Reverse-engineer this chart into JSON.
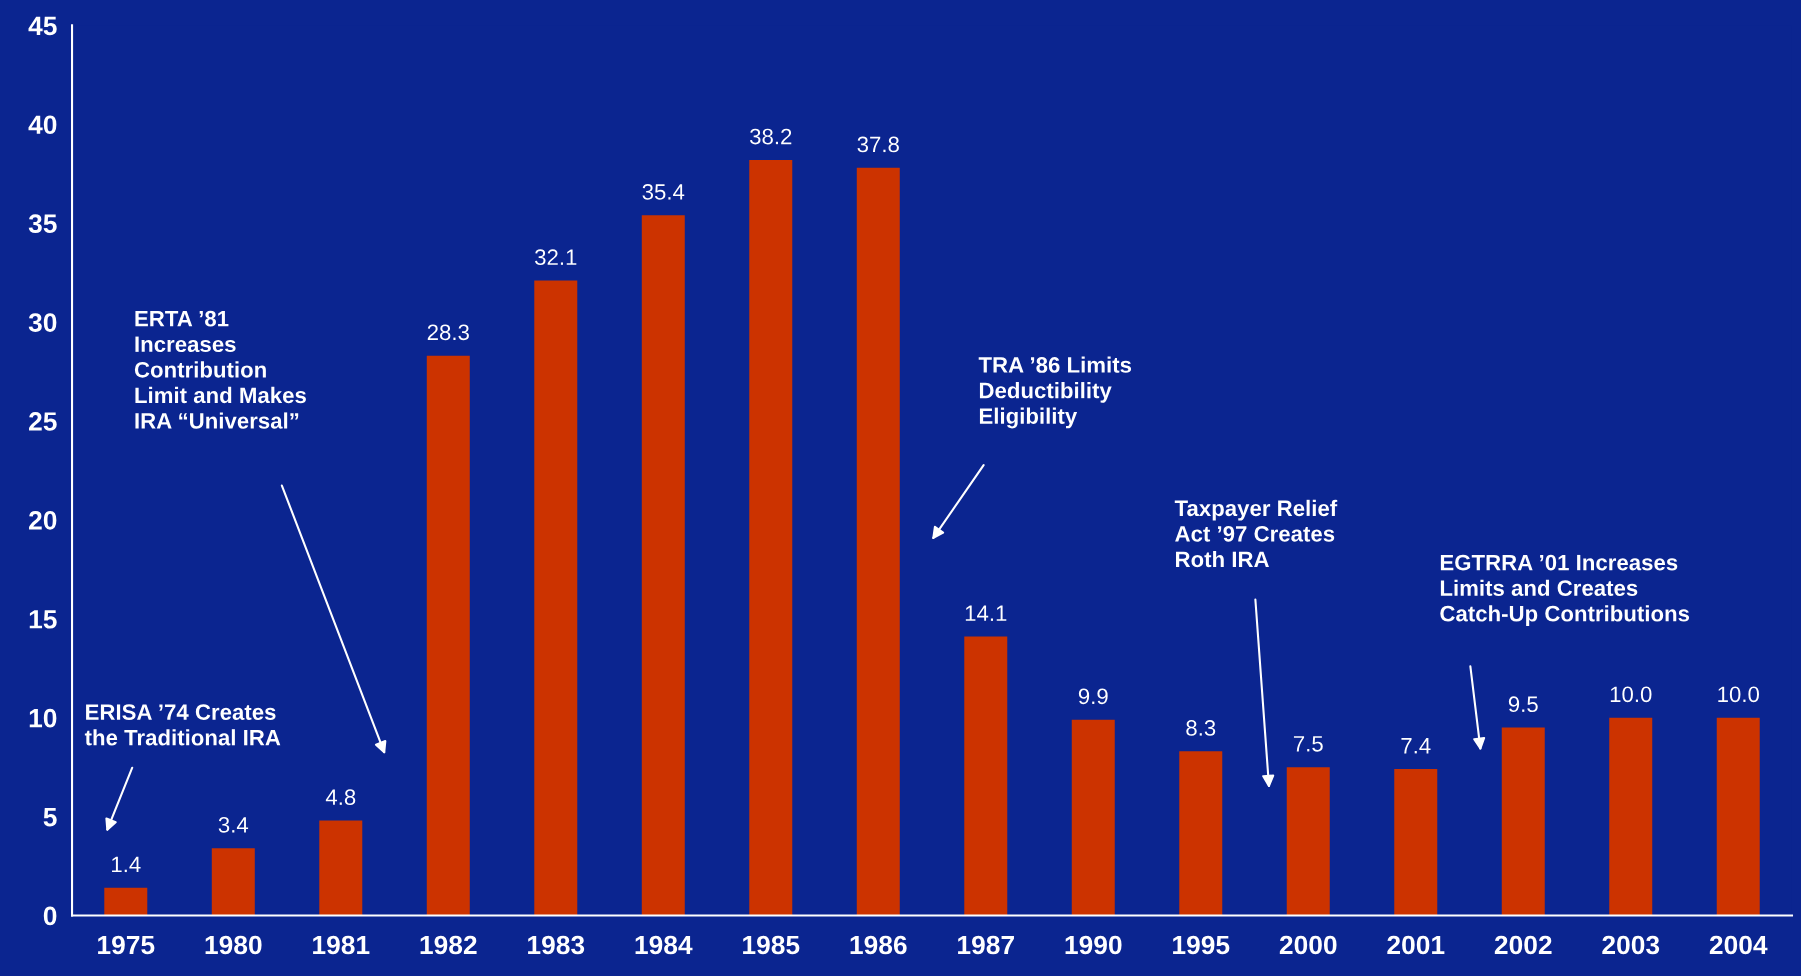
{
  "chart_data": {
    "type": "bar",
    "categories": [
      "1975",
      "1980",
      "1981",
      "1982",
      "1983",
      "1984",
      "1985",
      "1986",
      "1987",
      "1990",
      "1995",
      "2000",
      "2001",
      "2002",
      "2003",
      "2004"
    ],
    "values": [
      1.4,
      3.4,
      4.8,
      28.3,
      32.1,
      35.4,
      38.2,
      37.8,
      14.1,
      9.9,
      8.3,
      7.5,
      7.4,
      9.5,
      10.0,
      10.0
    ],
    "value_labels": [
      "1.4",
      "3.4",
      "4.8",
      "28.3",
      "32.1",
      "35.4",
      "38.2",
      "37.8",
      "14.1",
      "9.9",
      "8.3",
      "7.5",
      "7.4",
      "9.5",
      "10.0",
      "10.0"
    ],
    "color": "#cc3300",
    "ylim": [
      0,
      45
    ],
    "yticks": [
      0,
      5,
      10,
      15,
      20,
      25,
      30,
      35,
      40,
      45
    ],
    "grid": false,
    "legend": false,
    "annotations": [
      "ERISA ’74 Creates\nthe Traditional IRA",
      "ERTA ’81\nIncreases\nContribution\nLimit and Makes\nIRA “Universal”",
      "TRA ’86 Limits\nDeductibility\nEligibility",
      "Taxpayer Relief\nAct ’97 Creates\nRoth IRA",
      "EGTRRA ’01 Increases\nLimits and Creates\nCatch-Up Contributions"
    ]
  }
}
